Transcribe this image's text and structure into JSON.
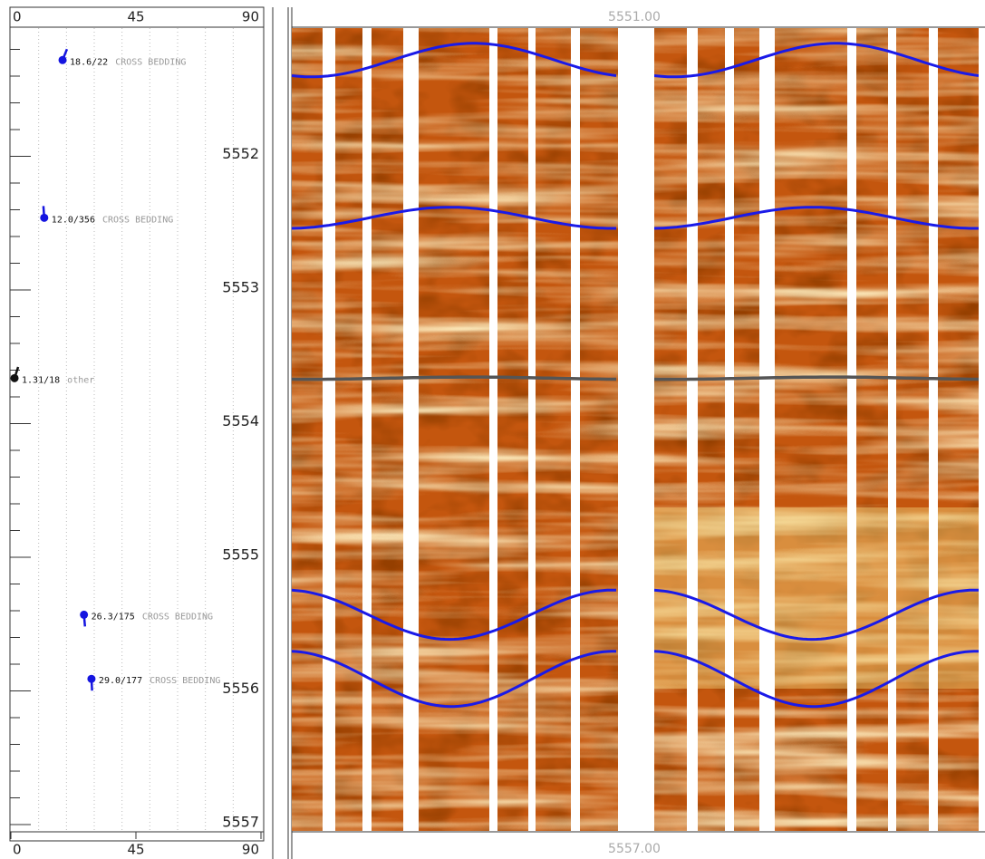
{
  "chart_data": {
    "type": "tadpole",
    "xlim": [
      0,
      90
    ],
    "xticks": [
      0,
      45,
      90
    ],
    "xgrid": [
      10,
      20,
      30,
      40,
      50,
      60,
      70,
      80
    ],
    "ylim": [
      5551,
      5557
    ],
    "yticks": [
      5552,
      5553,
      5554,
      5555,
      5556,
      5557
    ],
    "yminorticks": [
      5551.2,
      5551.4,
      5551.6,
      5551.8,
      5552.2,
      5552.4,
      5552.6,
      5552.8,
      5553.2,
      5553.4,
      5553.6,
      5553.8,
      5554.2,
      5554.4,
      5554.6,
      5554.8,
      5555.2,
      5555.4,
      5555.6,
      5555.8,
      5556.2,
      5556.4,
      5556.6,
      5556.8
    ],
    "image_depth_labels": [
      {
        "value": 5551,
        "label": "5551.00"
      },
      {
        "value": 5557,
        "label": "5557.00"
      }
    ],
    "series": [
      {
        "name": "CROSS BEDDING",
        "color": "#1515e0",
        "trace_color": "#1a1ae8",
        "depth": [
          5551.28,
          5552.46,
          5555.43,
          5555.91
        ],
        "dip": [
          18.6,
          12.0,
          26.3,
          29.0
        ],
        "azimuth": [
          22,
          356,
          175,
          177
        ],
        "value_labels": [
          "18.6/22",
          "12.0/356",
          "26.3/175",
          "29.0/177"
        ]
      },
      {
        "name": "other",
        "color": "#111111",
        "trace_color": "#555555",
        "depth": [
          5553.66
        ],
        "dip": [
          1.31
        ],
        "azimuth": [
          18
        ],
        "value_labels": [
          "1.31/18"
        ]
      }
    ]
  }
}
